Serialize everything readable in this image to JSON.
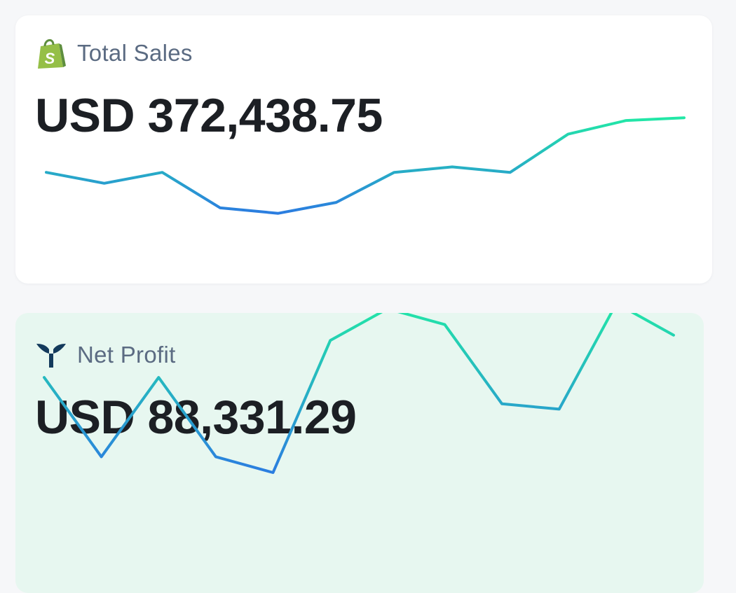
{
  "cards": [
    {
      "id": "sales",
      "title": "Total Sales",
      "icon": "shopify-bag-icon",
      "value": "USD 372,438.75",
      "background": "#ffffff",
      "sparkline": [
        0.62,
        0.58,
        0.62,
        0.49,
        0.47,
        0.51,
        0.62,
        0.64,
        0.62,
        0.76,
        0.81,
        0.82
      ],
      "sparkline_colors": {
        "low": "#2b7de0",
        "high": "#22e8a6"
      }
    },
    {
      "id": "profit",
      "title": "Net Profit",
      "icon": "whale-tail-icon",
      "value": "USD 88,331.29",
      "background": "#e7f7f0",
      "sparkline": [
        0.58,
        0.43,
        0.58,
        0.43,
        0.4,
        0.65,
        0.71,
        0.68,
        0.53,
        0.52,
        0.72,
        0.66
      ],
      "sparkline_colors": {
        "low": "#2b7de0",
        "high": "#22e8a6"
      }
    }
  ]
}
